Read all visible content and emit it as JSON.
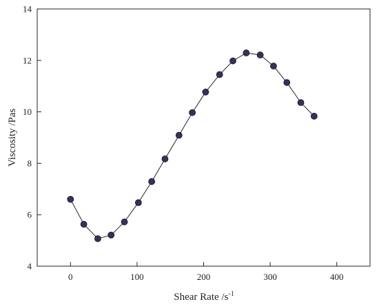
{
  "chart_data": {
    "type": "line",
    "title": "",
    "xlabel": "Shear Rate /s",
    "xlabel_superscript": "-1",
    "ylabel": "Viscosity /Pas",
    "xlim": [
      -50,
      450
    ],
    "ylim": [
      4,
      14
    ],
    "x_ticks": [
      0,
      100,
      200,
      300,
      400
    ],
    "y_ticks": [
      4,
      6,
      8,
      10,
      12,
      14
    ],
    "grid": false,
    "legend": "none",
    "marker": "circle",
    "series": [
      {
        "color": "#3b2f58",
        "x": [
          0,
          20,
          41,
          61,
          81,
          102,
          122,
          142,
          163,
          183,
          203,
          224,
          244,
          264,
          285,
          305,
          325,
          346,
          366
        ],
        "y": [
          6.6,
          5.63,
          5.07,
          5.21,
          5.72,
          6.47,
          7.29,
          8.17,
          9.09,
          9.97,
          10.77,
          11.45,
          11.98,
          12.29,
          12.21,
          11.78,
          11.14,
          10.36,
          9.83
        ]
      }
    ]
  }
}
